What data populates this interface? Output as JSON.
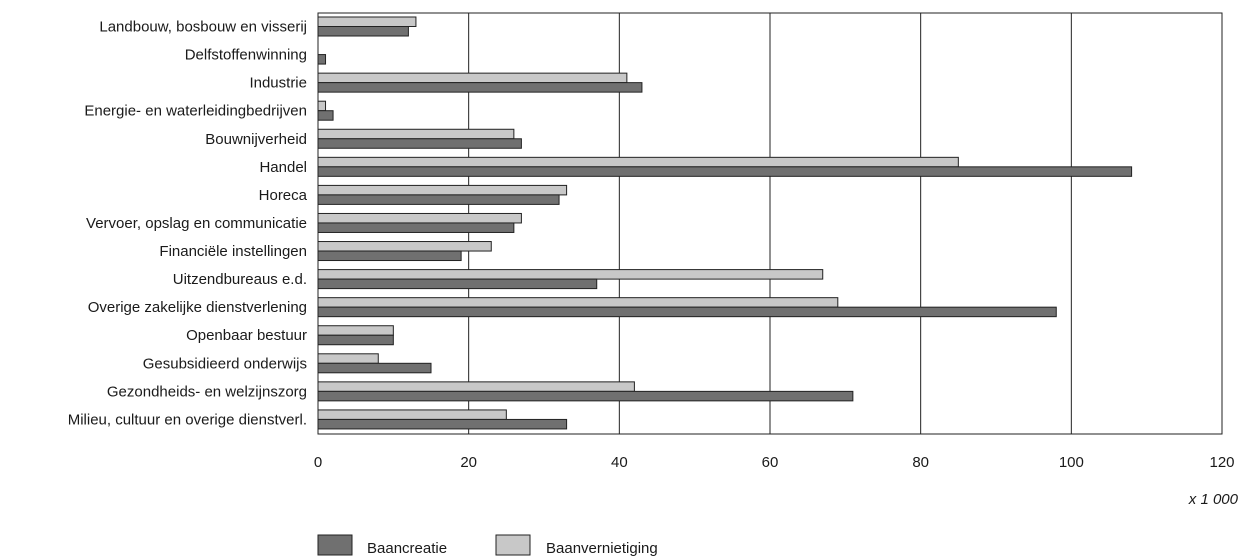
{
  "chart_data": {
    "type": "bar",
    "orientation": "horizontal",
    "unit_note": "x 1 000",
    "xlim": [
      0,
      120
    ],
    "xticks": [
      0,
      20,
      40,
      60,
      80,
      100,
      120
    ],
    "grid": "vertical",
    "legend_position": "bottom-left",
    "categories": [
      "Landbouw, bosbouw en visserij",
      "Delfstoffenwinning",
      "Industrie",
      "Energie- en waterleidingbedrijven",
      "Bouwnijverheid",
      "Handel",
      "Horeca",
      "Vervoer, opslag en communicatie",
      "Financiële instellingen",
      "Uitzendbureaus e.d.",
      "Overige zakelijke dienstverlening",
      "Openbaar bestuur",
      "Gesubsidieerd onderwijs",
      "Gezondheids- en welzijnszorg",
      "Milieu, cultuur en overige dienstverl."
    ],
    "series": [
      {
        "name": "Baanvernietiging",
        "color": "#c8c8c8",
        "values": [
          13,
          0,
          41,
          1,
          26,
          85,
          33,
          27,
          23,
          67,
          69,
          10,
          8,
          42,
          25
        ]
      },
      {
        "name": "Baancreatie",
        "color": "#707070",
        "values": [
          12,
          1,
          43,
          2,
          27,
          108,
          32,
          26,
          19,
          37,
          98,
          10,
          15,
          71,
          33
        ]
      }
    ],
    "legend": [
      {
        "name": "Baancreatie",
        "color": "#707070"
      },
      {
        "name": "Baanvernietiging",
        "color": "#c8c8c8"
      }
    ]
  }
}
